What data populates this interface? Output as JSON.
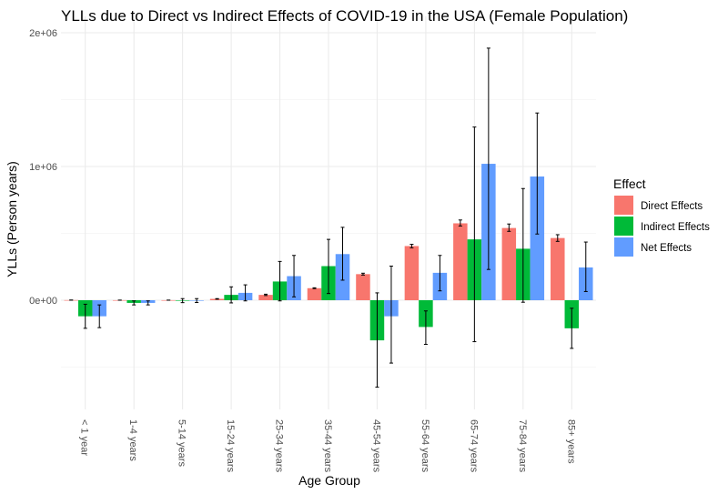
{
  "chart_data": {
    "type": "bar",
    "title": "YLLs due to Direct vs Indirect Effects of COVID-19 in the USA (Female Population)",
    "xlabel": "Age Group",
    "ylabel": "YLLs (Person years)",
    "ylim": [
      -820000,
      2100000
    ],
    "y_ticks": [
      0,
      1000000,
      2000000
    ],
    "y_tick_labels": [
      "0e+00",
      "1e+06",
      "2e+06"
    ],
    "grid": true,
    "categories": [
      "< 1 year",
      "1-4 years",
      "5-14 years",
      "15-24 years",
      "25-34 years",
      "35-44 years",
      "45-54 years",
      "55-64 years",
      "65-74 years",
      "75-84 years",
      "85+ years"
    ],
    "legend": {
      "title": "Effect",
      "position": "right"
    },
    "series": [
      {
        "name": "Direct Effects",
        "color": "#F8766D",
        "values": [
          1000,
          500,
          500,
          10000,
          40000,
          90000,
          195000,
          405000,
          575000,
          540000,
          465000
        ],
        "lower": [
          1000,
          500,
          500,
          8000,
          35000,
          87000,
          188000,
          392000,
          555000,
          515000,
          440000
        ],
        "upper": [
          1000,
          500,
          500,
          12000,
          45000,
          93000,
          202000,
          418000,
          600000,
          570000,
          490000
        ]
      },
      {
        "name": "Indirect Effects",
        "color": "#00BA38",
        "values": [
          -120000,
          -20000,
          -3000,
          40000,
          140000,
          255000,
          -300000,
          -200000,
          455000,
          385000,
          -210000
        ],
        "lower": [
          -210000,
          -35000,
          -18000,
          -20000,
          -5000,
          50000,
          -650000,
          -330000,
          -310000,
          -15000,
          -360000
        ],
        "upper": [
          -30000,
          -5000,
          12000,
          100000,
          290000,
          455000,
          55000,
          -80000,
          1295000,
          835000,
          -60000
        ]
      },
      {
        "name": "Net Effects",
        "color": "#619CFF",
        "values": [
          -120000,
          -20000,
          -2500,
          55000,
          180000,
          345000,
          -120000,
          205000,
          1020000,
          925000,
          245000
        ],
        "lower": [
          -205000,
          -35000,
          -17000,
          -5000,
          25000,
          150000,
          -470000,
          70000,
          230000,
          495000,
          65000
        ],
        "upper": [
          -35000,
          -5000,
          12000,
          115000,
          335000,
          545000,
          255000,
          335000,
          1885000,
          1400000,
          435000
        ]
      }
    ]
  }
}
